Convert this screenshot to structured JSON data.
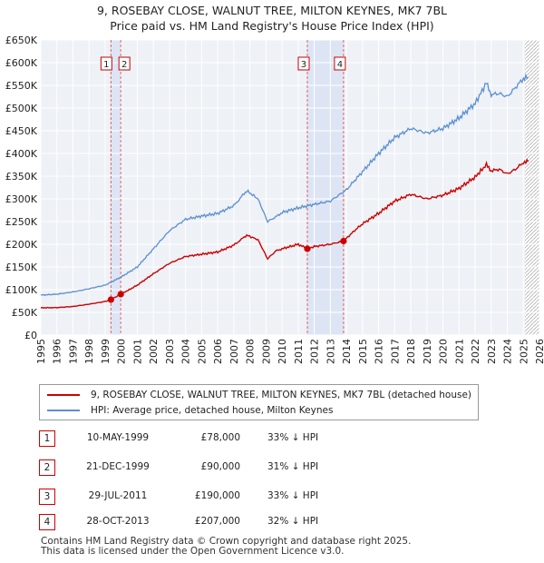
{
  "title_line1": "9, ROSEBAY CLOSE, WALNUT TREE, MILTON KEYNES, MK7 7BL",
  "title_line2": "Price paid vs. HM Land Registry's House Price Index (HPI)",
  "chart_data": {
    "type": "line",
    "title": "9, ROSEBAY CLOSE, WALNUT TREE, MILTON KEYNES, MK7 7BL — Price paid vs. HM Land Registry's House Price Index (HPI)",
    "xlim": [
      1995,
      2026
    ],
    "ylim": [
      0,
      650000
    ],
    "y_ticks": [
      0,
      50000,
      100000,
      150000,
      200000,
      250000,
      300000,
      350000,
      400000,
      450000,
      500000,
      550000,
      600000,
      650000
    ],
    "y_tick_labels": [
      "£0",
      "£50K",
      "£100K",
      "£150K",
      "£200K",
      "£250K",
      "£300K",
      "£350K",
      "£400K",
      "£450K",
      "£500K",
      "£550K",
      "£600K",
      "£650K"
    ],
    "x_ticks": [
      1995,
      1996,
      1997,
      1998,
      1999,
      2000,
      2001,
      2002,
      2003,
      2004,
      2005,
      2006,
      2007,
      2008,
      2009,
      2010,
      2011,
      2012,
      2013,
      2014,
      2015,
      2016,
      2017,
      2018,
      2019,
      2020,
      2021,
      2022,
      2023,
      2024,
      2025,
      2026
    ],
    "grid": true,
    "future_hatch_from": 2025.1,
    "series": [
      {
        "name": "9, ROSEBAY CLOSE, WALNUT TREE, MILTON KEYNES, MK7 7BL (detached house)",
        "color": "#cc0000",
        "x": [
          1995.0,
          1996.0,
          1997.0,
          1998.0,
          1999.0,
          1999.36,
          1999.97,
          2000.5,
          2001.0,
          2002.0,
          2003.0,
          2004.0,
          2005.0,
          2006.0,
          2007.0,
          2007.8,
          2008.5,
          2009.1,
          2009.6,
          2010.0,
          2011.0,
          2011.57,
          2012.0,
          2013.0,
          2013.82,
          2014.5,
          2015.0,
          2016.0,
          2017.0,
          2018.0,
          2019.0,
          2020.0,
          2021.0,
          2022.0,
          2022.7,
          2023.0,
          2023.5,
          2024.0,
          2024.5,
          2025.0,
          2025.3
        ],
        "values": [
          60000,
          60500,
          63000,
          68000,
          74000,
          78000,
          90000,
          100000,
          110000,
          135000,
          158000,
          173000,
          178000,
          183000,
          198000,
          220000,
          210000,
          168000,
          185000,
          190000,
          200000,
          190000,
          195000,
          200000,
          207000,
          230000,
          245000,
          268000,
          295000,
          310000,
          300000,
          308000,
          323000,
          348000,
          375000,
          362000,
          365000,
          355000,
          365000,
          380000,
          382000
        ]
      },
      {
        "name": "HPI: Average price, detached house, Milton Keynes",
        "color": "#5b8fd0",
        "x": [
          1995.0,
          1996.0,
          1997.0,
          1998.0,
          1999.0,
          2000.0,
          2001.0,
          2002.0,
          2003.0,
          2004.0,
          2005.0,
          2006.0,
          2007.0,
          2007.8,
          2008.5,
          2009.1,
          2009.6,
          2010.0,
          2011.0,
          2012.0,
          2013.0,
          2014.0,
          2015.0,
          2016.0,
          2017.0,
          2018.0,
          2019.0,
          2020.0,
          2021.0,
          2022.0,
          2022.7,
          2023.0,
          2023.5,
          2024.0,
          2024.5,
          2025.0,
          2025.3
        ],
        "values": [
          88000,
          90000,
          95000,
          102000,
          110000,
          128000,
          150000,
          190000,
          230000,
          255000,
          262000,
          268000,
          285000,
          318000,
          300000,
          250000,
          260000,
          270000,
          280000,
          288000,
          295000,
          320000,
          360000,
          400000,
          435000,
          455000,
          445000,
          455000,
          478000,
          510000,
          555000,
          530000,
          532000,
          525000,
          545000,
          565000,
          568000
        ]
      }
    ],
    "sale_markers": [
      {
        "id": "1",
        "x": 1999.36,
        "value": 78000
      },
      {
        "id": "2",
        "x": 1999.97,
        "value": 90000
      },
      {
        "id": "3",
        "x": 2011.57,
        "value": 190000
      },
      {
        "id": "4",
        "x": 2013.82,
        "value": 207000
      }
    ],
    "shaded_spans": [
      [
        1999.36,
        1999.97
      ],
      [
        2011.57,
        2013.82
      ]
    ]
  },
  "legend": {
    "red_label": "9, ROSEBAY CLOSE, WALNUT TREE, MILTON KEYNES, MK7 7BL (detached house)",
    "blue_label": "HPI: Average price, detached house, Milton Keynes",
    "red_color": "#cc0000",
    "blue_color": "#5b8fd0"
  },
  "sales": [
    {
      "num": "1",
      "date": "10-MAY-1999",
      "price": "£78,000",
      "hpi": "33% ↓ HPI"
    },
    {
      "num": "2",
      "date": "21-DEC-1999",
      "price": "£90,000",
      "hpi": "31% ↓ HPI"
    },
    {
      "num": "3",
      "date": "29-JUL-2011",
      "price": "£190,000",
      "hpi": "33% ↓ HPI"
    },
    {
      "num": "4",
      "date": "28-OCT-2013",
      "price": "£207,000",
      "hpi": "32% ↓ HPI"
    }
  ],
  "footer_line1": "Contains HM Land Registry data © Crown copyright and database right 2025.",
  "footer_line2": "This data is licensed under the Open Government Licence v3.0."
}
